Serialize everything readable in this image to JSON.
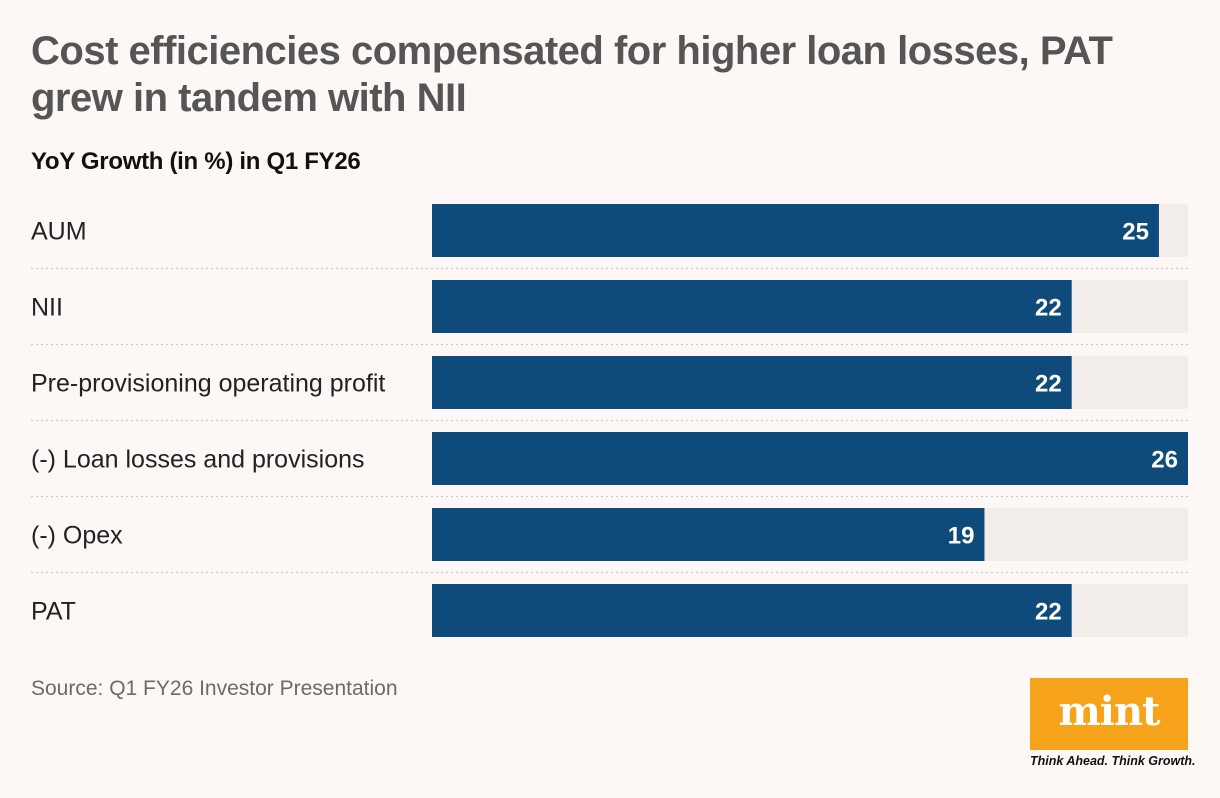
{
  "header": {
    "title": "Cost efficiencies compensated for higher loan losses, PAT grew in tandem with NII",
    "subtitle": "YoY Growth (in %) in Q1 FY26"
  },
  "footer": {
    "source": "Source: Q1 FY26 Investor Presentation",
    "logo_text": "mint",
    "tagline": "Think Ahead. Think Growth."
  },
  "colors": {
    "bar": "#0e4b7a",
    "track": "#f2ecea",
    "divider": "#c9c9c9",
    "logo_bg": "#f7a21b"
  },
  "chart_data": {
    "type": "bar",
    "orientation": "horizontal",
    "title": "Cost efficiencies compensated for higher loan losses, PAT grew in tandem with NII",
    "subtitle": "YoY Growth (in %) in Q1 FY26",
    "categories": [
      "AUM",
      "NII",
      "Pre-provisioning operating profit",
      "(-) Loan losses and provisions",
      "(-) Opex",
      "PAT"
    ],
    "values": [
      25,
      22,
      22,
      26,
      19,
      22
    ],
    "xlim": [
      0,
      26
    ],
    "grid": false,
    "data_labels": true
  }
}
